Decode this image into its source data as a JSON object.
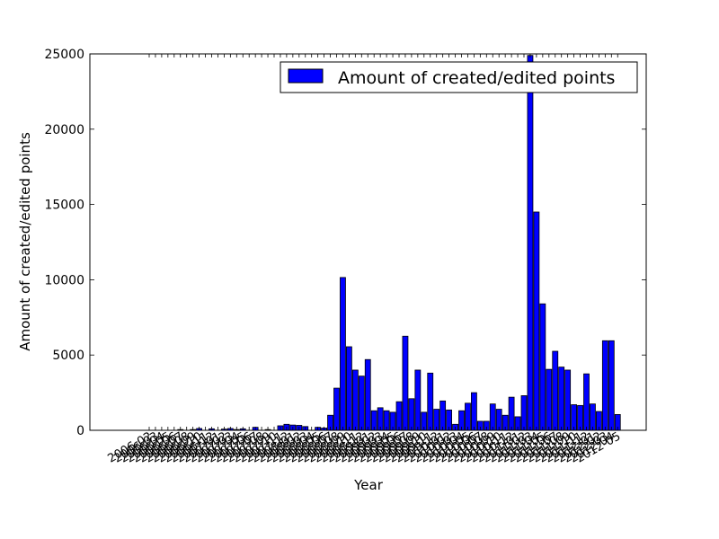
{
  "chart_data": {
    "type": "bar",
    "title": "",
    "xlabel": "Year",
    "ylabel": "Amount of created/edited points",
    "ylim": [
      0,
      25000
    ],
    "yticks": [
      0,
      5000,
      10000,
      15000,
      20000,
      25000
    ],
    "legend": {
      "position": "top-right",
      "entries": [
        "Amount of created/edited points"
      ]
    },
    "grid": false,
    "bar_color": "#0000ff",
    "series": [
      {
        "name": "Amount of created/edited points",
        "values": [
          0,
          0,
          0,
          0,
          0,
          50,
          0,
          50,
          120,
          0,
          100,
          0,
          80,
          120,
          50,
          100,
          0,
          200,
          0,
          50,
          0,
          300,
          400,
          350,
          330,
          250,
          0,
          200,
          150,
          1000,
          2800,
          10150,
          5550,
          4000,
          3600,
          4700,
          1300,
          1500,
          1300,
          1200,
          1900,
          6250,
          2100,
          4000,
          1200,
          3800,
          1400,
          1950,
          1350,
          400,
          1300,
          1800,
          2500,
          600,
          600,
          1750,
          1400,
          1000,
          2200,
          900,
          2300,
          24900,
          14500,
          8400,
          4050,
          5250,
          4200,
          4000,
          1700,
          1650,
          3750,
          1750,
          1250,
          5950,
          5950,
          1050
        ]
      }
    ],
    "categories": [
      "2006-02",
      "2006-03",
      "2006-04",
      "2006-05",
      "2006-06",
      "2006-07",
      "2006-08",
      "2006-09",
      "2006-10",
      "2006-11",
      "2006-12",
      "2007-01",
      "2007-02",
      "2007-03",
      "2007-04",
      "2007-05",
      "2007-06",
      "2007-07",
      "2007-08",
      "2007-09",
      "2007-10",
      "2007-11",
      "2007-12",
      "2008-01",
      "2008-02",
      "2008-03",
      "2008-04",
      "2008-05",
      "2008-06",
      "2008-07",
      "2008-08",
      "2008-09",
      "2008-10",
      "2008-11",
      "2008-12",
      "2009-01",
      "2009-02",
      "2009-03",
      "2009-04",
      "2009-05",
      "2009-06",
      "2009-07",
      "2009-08",
      "2009-09",
      "2009-10",
      "2009-11",
      "2009-12",
      "2010-01",
      "2010-02",
      "2010-03",
      "2010-04",
      "2010-05",
      "2010-06",
      "2010-07",
      "2010-08",
      "2010-09",
      "2010-10",
      "2010-11",
      "2010-12",
      "2011-01",
      "2011-02",
      "2011-03",
      "2011-04",
      "2011-05",
      "2011-06",
      "2011-07",
      "2011-08",
      "2011-09",
      "2011-10",
      "2011-11",
      "2011-12",
      "2012-01",
      "2012-02",
      "2012-03",
      "2012-04",
      "2012-05"
    ]
  }
}
